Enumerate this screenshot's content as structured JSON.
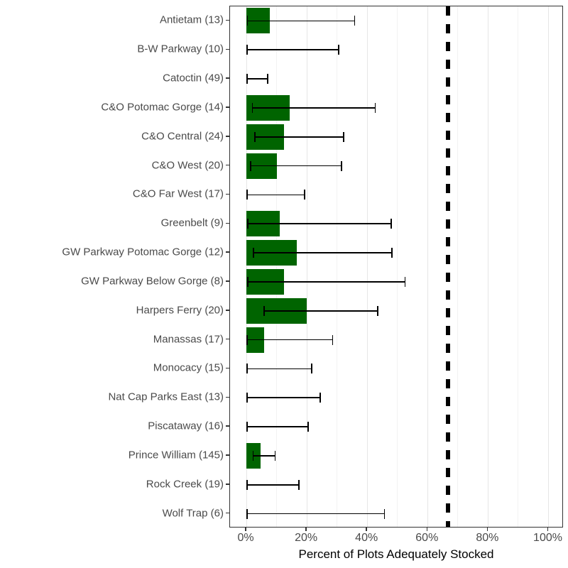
{
  "chart_data": {
    "type": "bar",
    "orientation": "horizontal",
    "title": "",
    "xlabel": "Percent of Plots Adequately Stocked",
    "ylabel": "",
    "xlim": [
      0,
      100
    ],
    "x_major_ticks": [
      0,
      20,
      40,
      60,
      80,
      100
    ],
    "x_minor_ticks": [
      10,
      30,
      50,
      70,
      90
    ],
    "x_tick_labels": [
      "0%",
      "20%",
      "40%",
      "60%",
      "80%",
      "100%"
    ],
    "grid": "vertical",
    "legend": "none",
    "reference_line_x": 66.7,
    "reference_line_style": "dashed-black",
    "bar_color": "#006400",
    "error_bar_color": "#000000",
    "categories": [
      "Antietam (13)",
      "B-W Parkway (10)",
      "Catoctin (49)",
      "C&O Potomac Gorge (14)",
      "C&O Central (24)",
      "C&O West (20)",
      "C&O Far West (17)",
      "Greenbelt (9)",
      "GW Parkway Potomac Gorge (12)",
      "GW Parkway Below Gorge (8)",
      "Harpers Ferry (20)",
      "Manassas (17)",
      "Monocacy (15)",
      "Nat Cap Parks East (13)",
      "Piscataway (16)",
      "Prince William (145)",
      "Rock Creek (19)",
      "Wolf Trap (6)"
    ],
    "sample_sizes": [
      13,
      10,
      49,
      14,
      24,
      20,
      17,
      9,
      12,
      8,
      20,
      17,
      15,
      13,
      16,
      145,
      19,
      6
    ],
    "values": [
      7.7,
      0,
      0,
      14.3,
      12.5,
      10.0,
      0,
      11.1,
      16.7,
      12.5,
      20.0,
      5.9,
      0,
      0,
      0,
      4.8,
      0,
      0
    ],
    "ci_lower": [
      0.2,
      0,
      0,
      1.8,
      2.7,
      1.2,
      0,
      0.3,
      2.1,
      0.3,
      5.7,
      0.1,
      0,
      0,
      0,
      2.0,
      0,
      0
    ],
    "ci_upper": [
      36.0,
      30.8,
      7.3,
      42.8,
      32.4,
      31.7,
      19.5,
      48.2,
      48.4,
      52.7,
      43.7,
      28.7,
      21.8,
      24.7,
      20.6,
      9.7,
      17.6,
      45.9
    ]
  }
}
